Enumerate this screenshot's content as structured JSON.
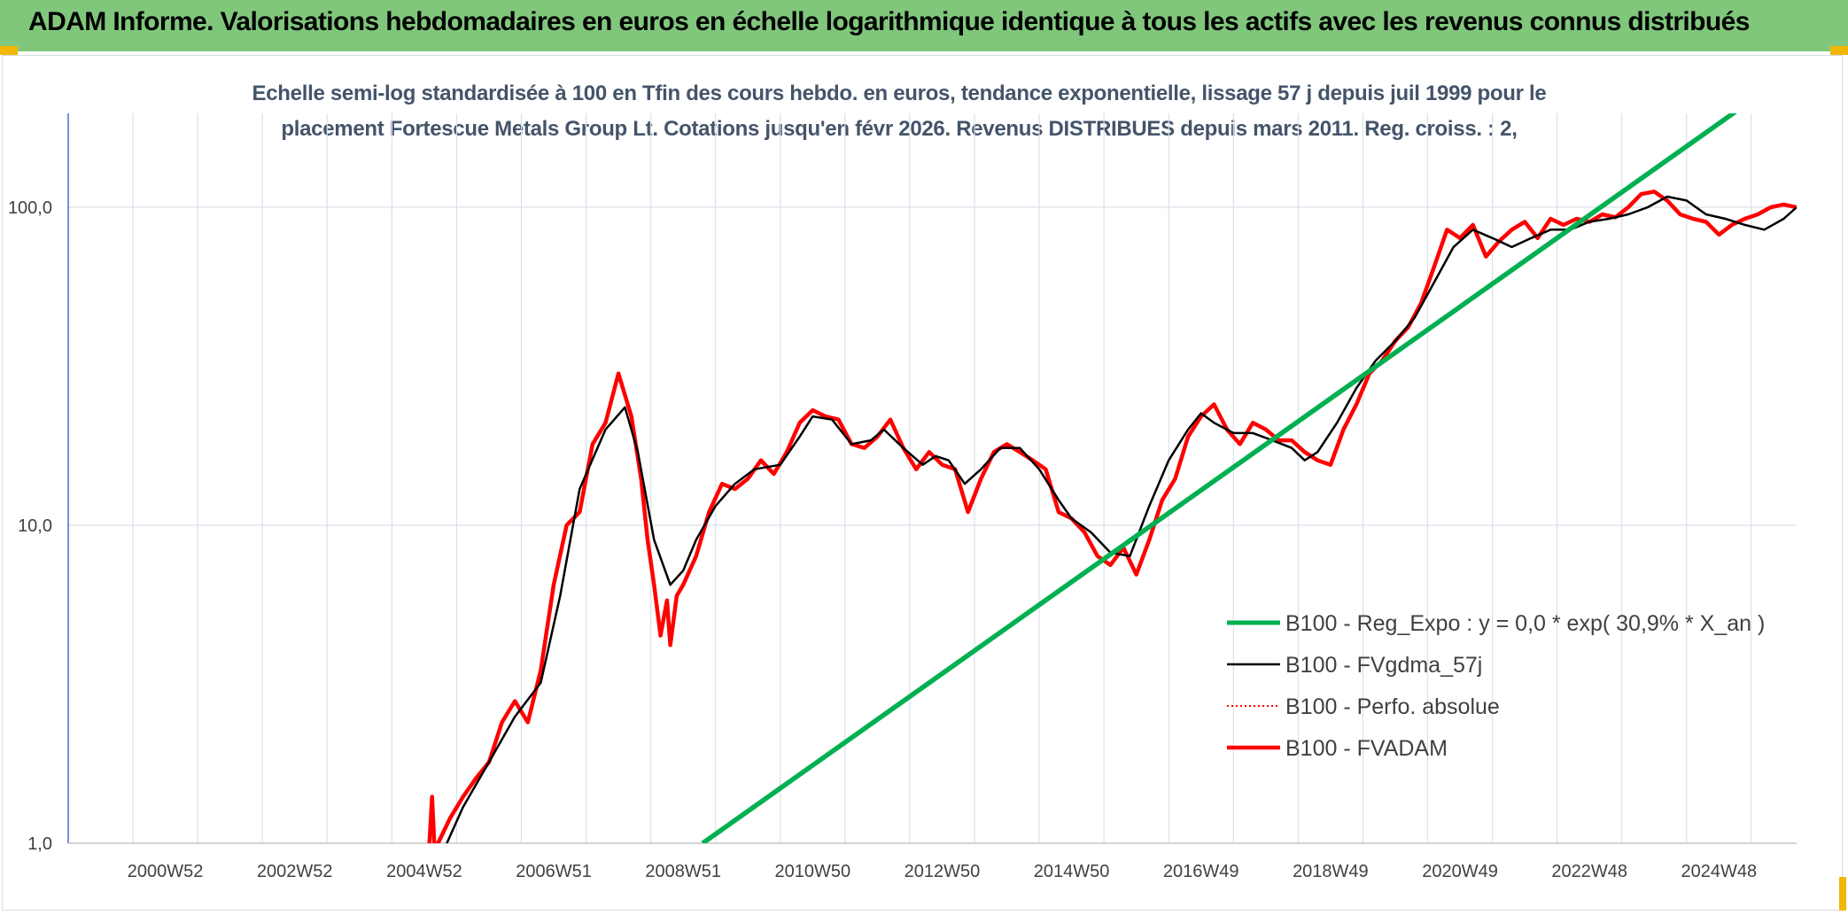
{
  "header": {
    "title": "ADAM Informe. Valorisations hebdomadaires en euros en échelle logarithmique identique à tous les actifs avec les revenus connus distribués"
  },
  "subtitle": {
    "line1": "Echelle semi-log standardisée à 100 en Tfin des cours hebdo. en euros, tendance exponentielle, lissage 57 j depuis juil 1999 pour le",
    "line2": "placement Fortescue Metals Group Lt. Cotations jusqu'en févr 2026. Revenus DISTRIBUES depuis mars 2011. Reg. croiss. : 2,"
  },
  "colors": {
    "header_bg": "#80c77c",
    "accent_corner": "#f2b705",
    "title_text": "#44546a",
    "series_green": "#00b050",
    "series_black": "#000000",
    "series_red": "#ff0000",
    "grid": "#d9e1ea",
    "axis": "#4472c4"
  },
  "chart_data": {
    "type": "line",
    "y_scale": "log",
    "ylim": [
      1,
      200
    ],
    "xlim": [
      1999.5,
      2026.2
    ],
    "yticks": [
      "1,0",
      "10,0",
      "100,0"
    ],
    "yticks_values": [
      1,
      10,
      100
    ],
    "xticks": [
      "2000W52",
      "2002W52",
      "2004W52",
      "2006W51",
      "2008W51",
      "2010W50",
      "2012W50",
      "2014W50",
      "2016W49",
      "2018W49",
      "2020W49",
      "2022W48",
      "2024W48"
    ],
    "xticks_values": [
      2001.0,
      2003.0,
      2005.0,
      2007.0,
      2009.0,
      2011.0,
      2013.0,
      2015.0,
      2017.0,
      2019.0,
      2021.0,
      2023.0,
      2025.0
    ],
    "grid": true,
    "legend_position": "right-center",
    "legend": [
      "B100 - Reg_Expo : y = 0,0 * exp( 30,9% *  X_an )",
      "B100 - FVgdma_57j",
      "B100 - Perfo. absolue",
      "B100 - FVADAM"
    ],
    "series": [
      {
        "name": "B100 - Reg_Expo : y = 0,0 * exp( 30,9% *  X_an )",
        "style": "solid-thick",
        "x": [
          2009.3,
          2025.26
        ],
        "y": [
          1.0,
          200
        ]
      },
      {
        "name": "B100 - FVgdma_57j",
        "style": "solid-thin",
        "x": [
          2005.3,
          2005.6,
          2006.0,
          2006.4,
          2006.8,
          2007.1,
          2007.4,
          2007.8,
          2008.1,
          2008.3,
          2008.55,
          2008.8,
          2009.0,
          2009.2,
          2009.5,
          2009.8,
          2010.1,
          2010.5,
          2010.8,
          2011.0,
          2011.3,
          2011.6,
          2011.9,
          2012.1,
          2012.4,
          2012.7,
          2012.9,
          2013.1,
          2013.35,
          2013.6,
          2013.9,
          2014.2,
          2014.5,
          2014.8,
          2015.0,
          2015.3,
          2015.6,
          2015.9,
          2016.2,
          2016.5,
          2016.8,
          2017.0,
          2017.2,
          2017.5,
          2017.8,
          2018.1,
          2018.4,
          2018.6,
          2018.8,
          2019.1,
          2019.4,
          2019.7,
          2020.0,
          2020.3,
          2020.6,
          2020.9,
          2021.2,
          2021.5,
          2021.8,
          2022.1,
          2022.4,
          2022.7,
          2023.0,
          2023.3,
          2023.6,
          2023.9,
          2024.2,
          2024.5,
          2024.8,
          2025.1,
          2025.4,
          2025.7,
          2026.0,
          2026.2
        ],
        "y": [
          0.95,
          1.3,
          1.8,
          2.5,
          3.2,
          6.0,
          13.0,
          20.0,
          23.5,
          17.0,
          9.0,
          6.5,
          7.2,
          9.0,
          11.5,
          13.5,
          15.0,
          15.5,
          19.0,
          22.0,
          21.5,
          18.0,
          18.5,
          20.0,
          17.5,
          15.5,
          16.5,
          16.0,
          13.5,
          15.0,
          17.5,
          17.5,
          15.0,
          12.0,
          10.5,
          9.5,
          8.2,
          8.0,
          11.5,
          16.0,
          20.0,
          22.5,
          21.0,
          19.5,
          19.5,
          18.5,
          17.5,
          16.0,
          17.0,
          21.0,
          27.0,
          33.0,
          38.0,
          45.0,
          58.0,
          75.0,
          85.0,
          80.0,
          75.0,
          80.0,
          85.0,
          85.0,
          90.0,
          92.0,
          95.0,
          100.0,
          108.0,
          105.0,
          95.0,
          92.0,
          88.0,
          85.0,
          92.0,
          100.0
        ]
      },
      {
        "name": "B100 - Perfo. absolue",
        "style": "dotted",
        "x": [
          2005.1,
          2005.3,
          2005.6,
          2006.0,
          2006.4,
          2006.8,
          2007.1,
          2007.4,
          2007.8,
          2008.1,
          2008.3,
          2008.55,
          2008.8,
          2009.0,
          2009.2,
          2009.5,
          2009.8,
          2010.1,
          2010.5,
          2010.8,
          2011.0,
          2011.3,
          2011.6,
          2011.9,
          2012.1,
          2012.4,
          2012.7,
          2012.9,
          2013.1,
          2013.35,
          2013.6,
          2013.9,
          2014.2,
          2014.5,
          2014.8,
          2015.0,
          2015.3,
          2015.6,
          2015.9,
          2016.2,
          2016.5,
          2016.8,
          2017.0,
          2017.2,
          2017.5,
          2017.8,
          2018.1,
          2018.4,
          2018.6,
          2018.8,
          2019.1,
          2019.4,
          2019.7,
          2020.0,
          2020.3,
          2020.6,
          2020.9,
          2021.2,
          2021.5,
          2021.8,
          2022.1,
          2022.4,
          2022.7,
          2023.0,
          2023.3,
          2023.6,
          2023.9,
          2024.2,
          2024.5,
          2024.8,
          2025.1,
          2025.4,
          2025.7,
          2026.0,
          2026.2
        ],
        "y": [
          1.0,
          0.95,
          1.3,
          1.8,
          2.5,
          3.2,
          6.0,
          13.0,
          20.0,
          23.5,
          17.0,
          9.0,
          6.5,
          7.2,
          9.0,
          11.5,
          13.5,
          15.0,
          15.5,
          19.0,
          22.0,
          21.5,
          18.0,
          18.5,
          20.0,
          17.5,
          15.5,
          16.5,
          16.0,
          13.5,
          15.0,
          17.5,
          17.5,
          15.0,
          12.0,
          10.5,
          9.5,
          8.2,
          8.0,
          11.5,
          16.0,
          20.0,
          22.5,
          21.0,
          19.5,
          19.5,
          18.5,
          17.5,
          16.0,
          17.0,
          21.0,
          27.0,
          33.0,
          38.0,
          45.0,
          58.0,
          75.0,
          85.0,
          80.0,
          75.0,
          80.0,
          85.0,
          85.0,
          90.0,
          92.0,
          95.0,
          100.0,
          108.0,
          105.0,
          95.0,
          92.0,
          88.0,
          85.0,
          92.0,
          100.0
        ]
      },
      {
        "name": "B100 - FVADAM",
        "style": "solid-thick",
        "x": [
          2005.08,
          2005.12,
          2005.16,
          2005.4,
          2005.6,
          2005.8,
          2006.0,
          2006.2,
          2006.4,
          2006.6,
          2006.8,
          2007.0,
          2007.2,
          2007.4,
          2007.6,
          2007.8,
          2008.0,
          2008.2,
          2008.35,
          2008.45,
          2008.55,
          2008.65,
          2008.75,
          2008.8,
          2008.9,
          2009.0,
          2009.2,
          2009.4,
          2009.6,
          2009.8,
          2010.0,
          2010.2,
          2010.4,
          2010.6,
          2010.8,
          2011.0,
          2011.2,
          2011.4,
          2011.6,
          2011.8,
          2012.0,
          2012.2,
          2012.4,
          2012.6,
          2012.8,
          2013.0,
          2013.2,
          2013.4,
          2013.6,
          2013.8,
          2014.0,
          2014.2,
          2014.4,
          2014.6,
          2014.8,
          2015.0,
          2015.2,
          2015.4,
          2015.6,
          2015.8,
          2016.0,
          2016.2,
          2016.4,
          2016.6,
          2016.8,
          2017.0,
          2017.2,
          2017.4,
          2017.6,
          2017.8,
          2018.0,
          2018.2,
          2018.4,
          2018.6,
          2018.8,
          2019.0,
          2019.2,
          2019.4,
          2019.6,
          2019.8,
          2020.0,
          2020.2,
          2020.4,
          2020.6,
          2020.8,
          2021.0,
          2021.2,
          2021.4,
          2021.6,
          2021.8,
          2022.0,
          2022.2,
          2022.4,
          2022.6,
          2022.8,
          2023.0,
          2023.2,
          2023.4,
          2023.6,
          2023.8,
          2024.0,
          2024.2,
          2024.4,
          2024.6,
          2024.8,
          2025.0,
          2025.2,
          2025.4,
          2025.6,
          2025.8,
          2026.0,
          2026.2
        ],
        "y": [
          1.0,
          1.4,
          0.95,
          1.2,
          1.4,
          1.6,
          1.8,
          2.4,
          2.8,
          2.4,
          3.5,
          6.5,
          10.0,
          11.0,
          18.0,
          21.0,
          30.0,
          22.0,
          14.0,
          9.0,
          6.5,
          4.5,
          5.8,
          4.2,
          6.0,
          6.5,
          8.0,
          11.0,
          13.5,
          13.0,
          14.0,
          16.0,
          14.5,
          17.0,
          21.0,
          23.0,
          22.0,
          21.5,
          18.0,
          17.5,
          19.0,
          21.5,
          17.5,
          15.0,
          17.0,
          15.5,
          15.0,
          11.0,
          14.0,
          17.0,
          18.0,
          17.0,
          16.0,
          15.0,
          11.0,
          10.5,
          9.5,
          8.0,
          7.5,
          8.5,
          7.0,
          9.0,
          12.0,
          14.0,
          19.0,
          22.0,
          24.0,
          20.0,
          18.0,
          21.0,
          20.0,
          18.5,
          18.5,
          17.0,
          16.0,
          15.5,
          20.0,
          24.0,
          30.0,
          33.0,
          38.0,
          42.0,
          50.0,
          65.0,
          85.0,
          80.0,
          88.0,
          70.0,
          78.0,
          85.0,
          90.0,
          80.0,
          92.0,
          88.0,
          92.0,
          90.0,
          95.0,
          93.0,
          100.0,
          110.0,
          112.0,
          105.0,
          95.0,
          92.0,
          90.0,
          82.0,
          88.0,
          92.0,
          95.0,
          100.0,
          102.0,
          100.0
        ]
      }
    ]
  }
}
